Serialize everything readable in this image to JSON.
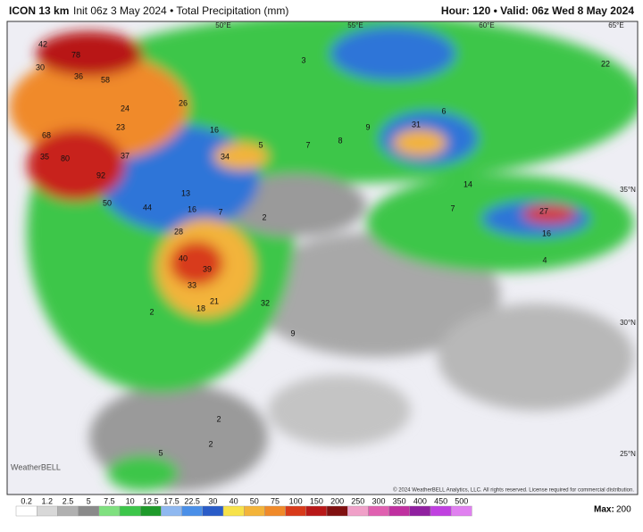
{
  "header": {
    "model": "ICON 13 km",
    "info": "Init 06z 3 May 2024 • Total Precipitation (mm)",
    "valid": "Hour: 120 • Valid: 06z Wed 8 May 2024"
  },
  "geo_labels": [
    "50°E",
    "55°E",
    "60°E",
    "65°E",
    "35°N",
    "30°N",
    "25°N"
  ],
  "map_labels": [
    42,
    78,
    30,
    58,
    36,
    24,
    26,
    23,
    68,
    16,
    35,
    80,
    37,
    34,
    92,
    13,
    50,
    16,
    44,
    7,
    2,
    28,
    40,
    39,
    33,
    32,
    18,
    21,
    9,
    31,
    14,
    7,
    27,
    16,
    4,
    6,
    9,
    8,
    7,
    5,
    3,
    22,
    2,
    5,
    2,
    2
  ],
  "logo": "WeatherBELL",
  "copyright": "© 2024 WeatherBELL Analytics, LLC. All rights reserved. License required for commercial distribution.",
  "colorbar": {
    "labels": [
      0.2,
      1.2,
      2.5,
      5,
      7.5,
      10,
      12.5,
      17.5,
      22.5,
      30,
      40,
      50,
      75,
      100,
      150,
      200,
      250,
      300,
      350,
      400,
      450,
      500
    ]
  },
  "max": {
    "label": "Max:",
    "value": 200
  }
}
